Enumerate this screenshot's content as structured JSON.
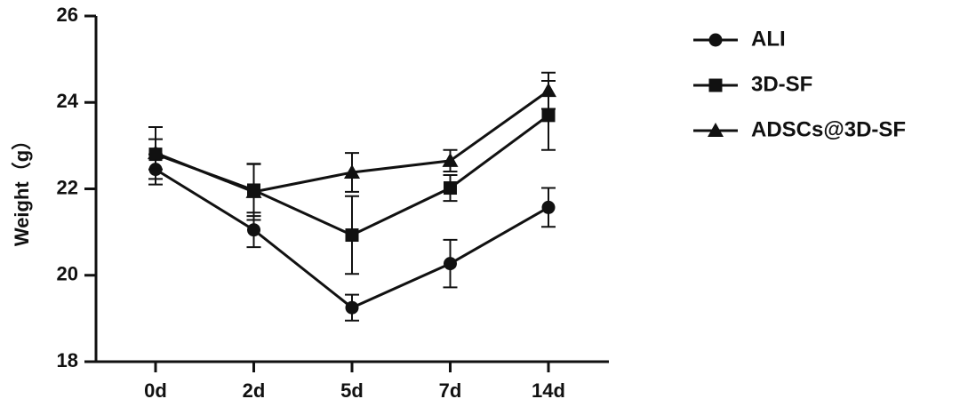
{
  "chart_data": {
    "type": "line",
    "y_label": "Weight（g）",
    "categories": [
      "0d",
      "2d",
      "5d",
      "7d",
      "14d"
    ],
    "ylim": [
      18,
      26
    ],
    "yticks": [
      18,
      20,
      22,
      24,
      26
    ],
    "series": [
      {
        "name": "ALI",
        "color": "#111111",
        "marker": "circle",
        "values": [
          22.45,
          21.05,
          19.25,
          20.27,
          21.57
        ],
        "errors": [
          0.35,
          0.4,
          0.3,
          0.55,
          0.45
        ]
      },
      {
        "name": "3D-SF",
        "color": "#111111",
        "marker": "square",
        "values": [
          22.8,
          21.97,
          20.93,
          22.02,
          23.7
        ],
        "errors": [
          0.35,
          0.6,
          0.9,
          0.3,
          0.8
        ]
      },
      {
        "name": "ADSCs@3D-SF",
        "color": "#111111",
        "marker": "triangle",
        "values": [
          22.83,
          21.93,
          22.38,
          22.65,
          24.27
        ],
        "errors": [
          0.6,
          0.65,
          0.45,
          0.25,
          0.42
        ]
      }
    ]
  }
}
